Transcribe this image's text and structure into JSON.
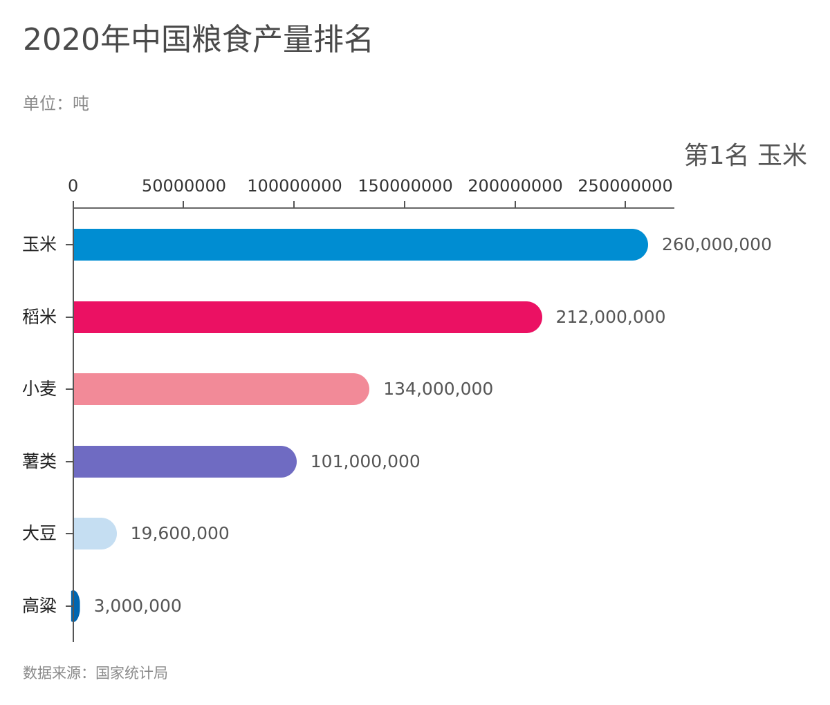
{
  "header": {
    "title": "2020年中国粮食产量排名",
    "unit": "单位：吨",
    "rank_label": "第1名 玉米"
  },
  "footer": {
    "source": "数据来源：国家统计局"
  },
  "axis": {
    "ticks": [
      "0",
      "50000000",
      "100000000",
      "150000000",
      "200000000",
      "250000000"
    ]
  },
  "bars": [
    {
      "label": "玉米",
      "value": 260000000,
      "value_label": "260,000,000",
      "color": "#008dd2"
    },
    {
      "label": "稻米",
      "value": 212000000,
      "value_label": "212,000,000",
      "color": "#eb1163"
    },
    {
      "label": "小麦",
      "value": 134000000,
      "value_label": "134,000,000",
      "color": "#f28a98"
    },
    {
      "label": "薯类",
      "value": 101000000,
      "value_label": "101,000,000",
      "color": "#6f6bc2"
    },
    {
      "label": "大豆",
      "value": 19600000,
      "value_label": "19,600,000",
      "color": "#c5def2"
    },
    {
      "label": "高粱",
      "value": 3000000,
      "value_label": "3,000,000",
      "color": "#0066b0"
    }
  ],
  "chart_data": {
    "type": "bar",
    "orientation": "horizontal",
    "title": "2020年中国粮食产量排名",
    "subtitle": "单位：吨",
    "annotation": "第1名 玉米",
    "source": "数据来源：国家统计局",
    "categories": [
      "玉米",
      "稻米",
      "小麦",
      "薯类",
      "大豆",
      "高粱"
    ],
    "values": [
      260000000,
      212000000,
      134000000,
      101000000,
      19600000,
      3000000
    ],
    "colors": [
      "#008dd2",
      "#eb1163",
      "#f28a98",
      "#6f6bc2",
      "#c5def2",
      "#0066b0"
    ],
    "xlabel": "",
    "ylabel": "",
    "xlim": [
      0,
      270000000
    ],
    "x_ticks": [
      0,
      50000000,
      100000000,
      150000000,
      200000000,
      250000000
    ],
    "x_axis_position": "top",
    "grid": false,
    "legend": null
  }
}
